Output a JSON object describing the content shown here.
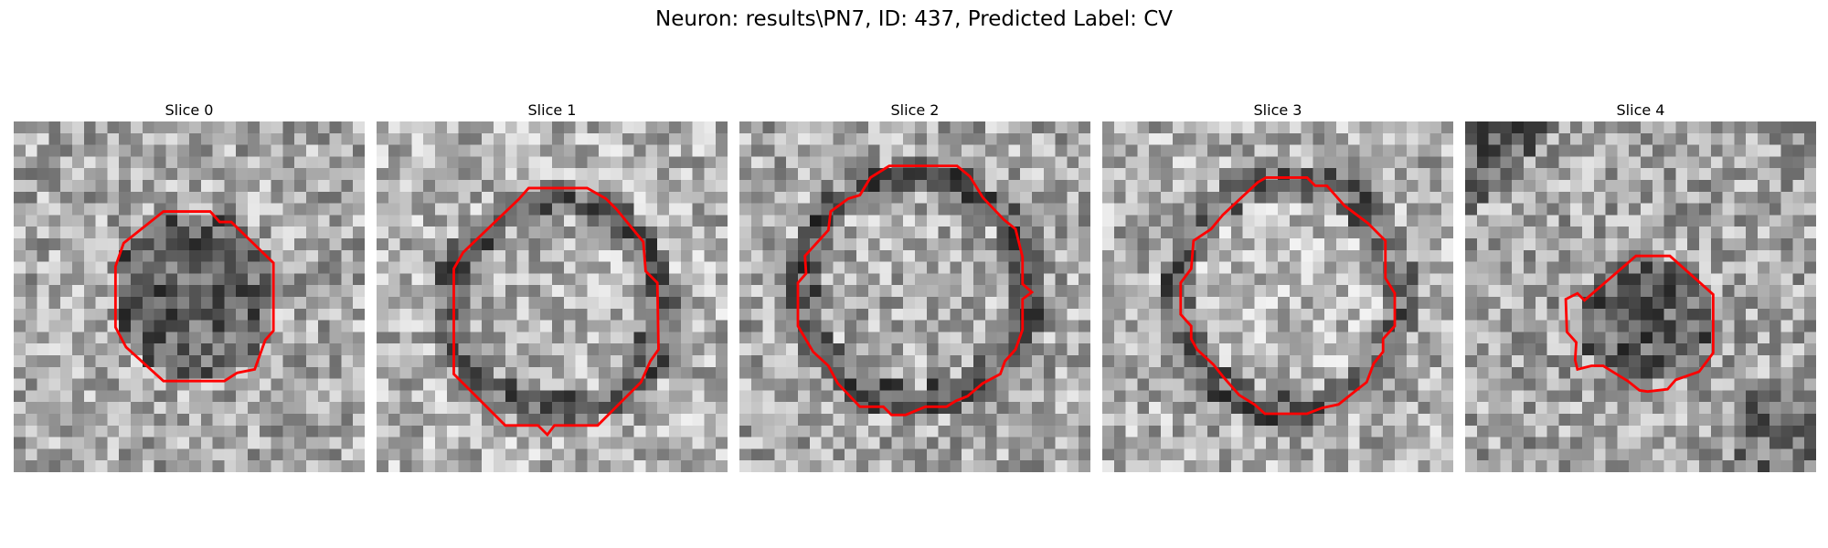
{
  "figure": {
    "title": "Neuron: results\\PN7, ID: 437, Predicted Label: CV",
    "contour_color": "#ff0000"
  },
  "slices": [
    {
      "label": "Slice 0"
    },
    {
      "label": "Slice 1"
    },
    {
      "label": "Slice 2"
    },
    {
      "label": "Slice 3"
    },
    {
      "label": "Slice 4"
    }
  ]
}
